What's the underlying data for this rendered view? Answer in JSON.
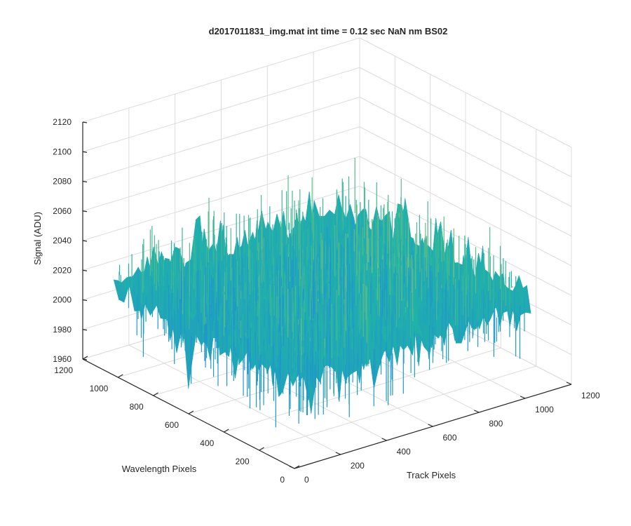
{
  "chart_data": {
    "type": "surface",
    "title": "d2017011831_img.mat int time = 0.12 sec  NaN nm BS02",
    "xlabel": "Wavelength Pixels",
    "ylabel": "Track Pixels",
    "zlabel": "Signal (ADU)",
    "xlim": [
      0,
      1200
    ],
    "ylim": [
      0,
      1200
    ],
    "zlim": [
      1960,
      2120
    ],
    "x_ticks": [
      "0",
      "200",
      "400",
      "600",
      "800",
      "1000",
      "1200"
    ],
    "y_ticks": [
      "0",
      "200",
      "400",
      "600",
      "800",
      "1000",
      "1200"
    ],
    "z_ticks": [
      "1960",
      "1980",
      "2000",
      "2020",
      "2040",
      "2060",
      "2080",
      "2100",
      "2120"
    ],
    "data_extent": {
      "x": [
        0,
        1024
      ],
      "y": [
        0,
        1024
      ]
    },
    "baseline_signal": 2020,
    "signal_range": [
      1965,
      2115
    ],
    "colormap": "parula",
    "grid": true
  },
  "colors": {
    "low": "#1f8fd6",
    "mid": "#21b3a6",
    "high": "#e3d04a",
    "axis": "#262626",
    "grid": "#dcdcdc"
  }
}
